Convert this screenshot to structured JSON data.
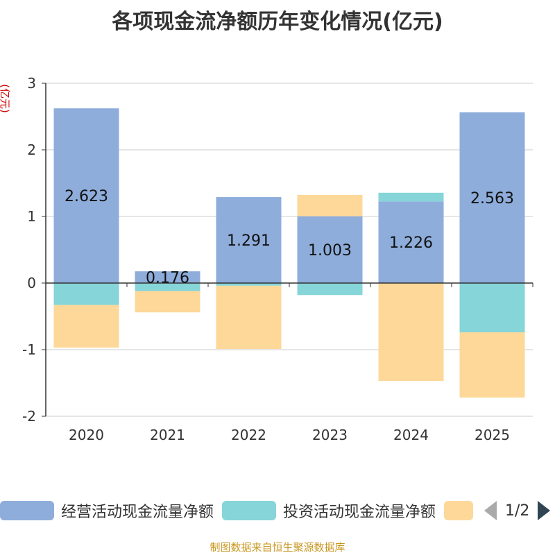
{
  "chart_data": {
    "type": "bar",
    "stacked": true,
    "title": "各项现金流净额历年变化情况(亿元)",
    "ylabel": "(亿元)",
    "xlabel": "",
    "ylim": [
      -2,
      3
    ],
    "yticks": [
      -2,
      -1,
      0,
      1,
      2,
      3
    ],
    "categories": [
      "2020",
      "2021",
      "2022",
      "2023",
      "2024",
      "2025"
    ],
    "series": [
      {
        "name": "经营活动现金流量净额",
        "color": "#8eaddb",
        "values": [
          2.623,
          0.176,
          1.291,
          1.003,
          1.226,
          2.563
        ],
        "labels": [
          "2.623",
          "0.176",
          "1.291",
          "1.003",
          "1.226",
          "2.563"
        ]
      },
      {
        "name": "投资活动现金流量净额",
        "color": "#86d5d8",
        "values": [
          -0.33,
          -0.12,
          -0.04,
          -0.18,
          0.13,
          -0.74
        ]
      },
      {
        "name": "",
        "color": "#fdd899",
        "values": [
          -0.64,
          -0.32,
          -0.95,
          0.32,
          -1.47,
          -0.98
        ]
      }
    ],
    "legend_position": "bottom"
  },
  "legend": {
    "page_text": "1/2"
  },
  "source": "制图数据来自恒生聚源数据库"
}
